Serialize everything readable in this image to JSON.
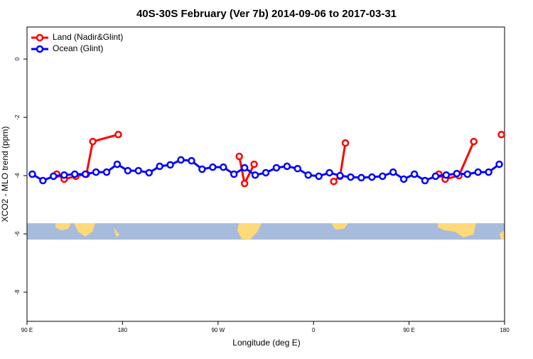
{
  "chart_data": {
    "type": "line",
    "title": "40S-30S February (Ver 7b)   2014-09-06 to 2017-03-31",
    "xlabel": "Longitude (deg E)",
    "ylabel": "XCO2 - MLO trend (ppm)",
    "xlim": [
      90,
      540
    ],
    "ylim": [
      -9,
      1.1
    ],
    "xticks": [
      {
        "value": 90,
        "label": "90 E"
      },
      180,
      {
        "value": 270,
        "label": "90 W"
      },
      {
        "value": 360,
        "label": "0"
      },
      {
        "value": 450,
        "label": "90 E"
      },
      {
        "value": 540,
        "label": "180"
      }
    ],
    "yticks": [
      0,
      -2,
      -4,
      -6,
      -8
    ],
    "legend": "top-left",
    "series": [
      {
        "name": "Land (Nadir&Glint)",
        "color": "#ff0000",
        "x": [
          118,
          125,
          136,
          146,
          152,
          176,
          null,
          290,
          295,
          304,
          null,
          379,
          385,
          390,
          null,
          478,
          484,
          497,
          511,
          null,
          537
        ],
        "values": [
          -3.95,
          -4.12,
          -4.02,
          -3.95,
          -2.83,
          -2.59,
          null,
          -3.34,
          -4.27,
          -3.61,
          null,
          -4.2,
          -4.02,
          -2.88,
          null,
          -3.95,
          -4.12,
          -4.0,
          -2.83,
          null,
          -2.59
        ]
      },
      {
        "name": "Ocean (Glint)",
        "color": "#0000ff",
        "x": [
          95,
          105,
          115,
          125,
          135,
          145,
          155,
          165,
          175,
          185,
          195,
          205,
          215,
          225,
          235,
          245,
          255,
          265,
          275,
          285,
          295,
          305,
          315,
          325,
          335,
          345,
          355,
          365,
          375,
          385,
          395,
          405,
          415,
          425,
          435,
          445,
          455,
          465,
          475,
          485,
          495,
          505,
          515,
          525,
          535
        ],
        "values": [
          -3.95,
          -4.17,
          -4.02,
          -3.98,
          -3.95,
          -3.95,
          -3.88,
          -3.88,
          -3.61,
          -3.83,
          -3.83,
          -3.9,
          -3.68,
          -3.63,
          -3.46,
          -3.49,
          -3.78,
          -3.71,
          -3.71,
          -3.95,
          -3.73,
          -3.98,
          -3.9,
          -3.73,
          -3.68,
          -3.76,
          -3.98,
          -4.02,
          -3.9,
          -4.0,
          -4.05,
          -4.07,
          -4.05,
          -4.02,
          -3.88,
          -4.12,
          -3.95,
          -4.17,
          -4.02,
          -3.98,
          -3.93,
          -3.95,
          -3.88,
          -3.88,
          -3.61
        ]
      }
    ]
  }
}
